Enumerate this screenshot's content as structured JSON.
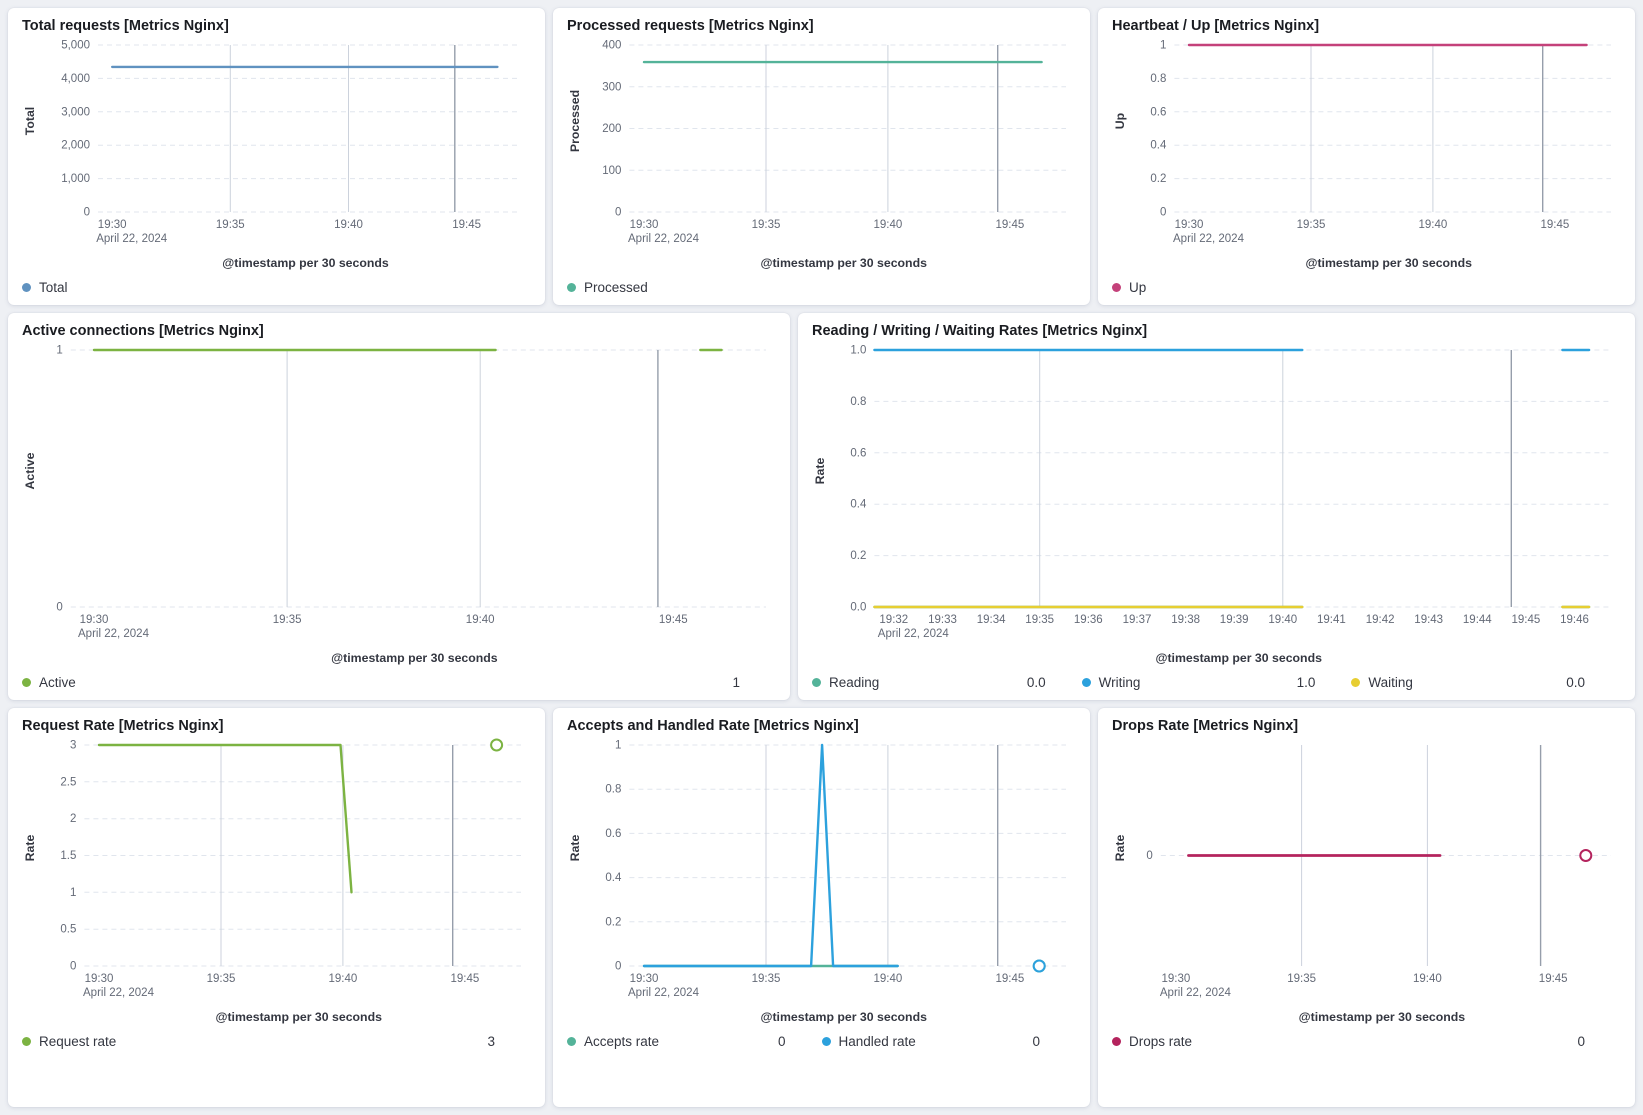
{
  "page": {
    "background": "#eef0f4",
    "panel_background": "#ffffff"
  },
  "chart_data": [
    {
      "type": "line",
      "title": "Total requests [Metrics Nginx]",
      "ylabel": "Total",
      "xlabel": "@timestamp per 30 seconds",
      "xlim": [
        29.4,
        47.3
      ],
      "ylim": [
        0,
        5000
      ],
      "y_ticks": [
        {
          "v": 0,
          "label": "0"
        },
        {
          "v": 1000,
          "label": "1,000"
        },
        {
          "v": 2000,
          "label": "2,000"
        },
        {
          "v": 3000,
          "label": "3,000"
        },
        {
          "v": 4000,
          "label": "4,000"
        },
        {
          "v": 5000,
          "label": "5,000"
        }
      ],
      "x_ticks": [
        {
          "v": 30,
          "label": "19:30",
          "sub": "April 22, 2024"
        },
        {
          "v": 35,
          "label": "19:35"
        },
        {
          "v": 40,
          "label": "19:40"
        },
        {
          "v": 45,
          "label": "19:45"
        }
      ],
      "grid_x": [
        35,
        40
      ],
      "annotation_x": 44.5,
      "series": [
        {
          "name": "Total",
          "color": "#6092C0",
          "points": [
            [
              30,
              4345
            ],
            [
              46.3,
              4345
            ]
          ]
        }
      ],
      "legend": [
        {
          "label": "Total",
          "color": "#6092C0"
        }
      ]
    },
    {
      "type": "line",
      "title": "Processed requests [Metrics Nginx]",
      "ylabel": "Processed",
      "xlabel": "@timestamp per 30 seconds",
      "xlim": [
        29.4,
        47.3
      ],
      "ylim": [
        0,
        400
      ],
      "y_ticks": [
        {
          "v": 0,
          "label": "0"
        },
        {
          "v": 100,
          "label": "100"
        },
        {
          "v": 200,
          "label": "200"
        },
        {
          "v": 300,
          "label": "300"
        },
        {
          "v": 400,
          "label": "400"
        }
      ],
      "x_ticks": [
        {
          "v": 30,
          "label": "19:30",
          "sub": "April 22, 2024"
        },
        {
          "v": 35,
          "label": "19:35"
        },
        {
          "v": 40,
          "label": "19:40"
        },
        {
          "v": 45,
          "label": "19:45"
        }
      ],
      "grid_x": [
        35,
        40
      ],
      "annotation_x": 44.5,
      "series": [
        {
          "name": "Processed",
          "color": "#54B399",
          "points": [
            [
              30,
              359
            ],
            [
              46.3,
              359
            ]
          ]
        }
      ],
      "legend": [
        {
          "label": "Processed",
          "color": "#54B399"
        }
      ]
    },
    {
      "type": "line",
      "title": "Heartbeat / Up [Metrics Nginx]",
      "ylabel": "Up",
      "xlabel": "@timestamp per 30 seconds",
      "xlim": [
        29.4,
        47.3
      ],
      "ylim": [
        0,
        1
      ],
      "y_ticks": [
        {
          "v": 0,
          "label": "0"
        },
        {
          "v": 0.2,
          "label": "0.2"
        },
        {
          "v": 0.4,
          "label": "0.4"
        },
        {
          "v": 0.6,
          "label": "0.6"
        },
        {
          "v": 0.8,
          "label": "0.8"
        },
        {
          "v": 1,
          "label": "1"
        }
      ],
      "x_ticks": [
        {
          "v": 30,
          "label": "19:30",
          "sub": "April 22, 2024"
        },
        {
          "v": 35,
          "label": "19:35"
        },
        {
          "v": 40,
          "label": "19:40"
        },
        {
          "v": 45,
          "label": "19:45"
        }
      ],
      "grid_x": [
        35,
        40
      ],
      "annotation_x": 44.5,
      "series": [
        {
          "name": "Up",
          "color": "#C4417A",
          "points": [
            [
              30,
              1
            ],
            [
              46.3,
              1
            ]
          ]
        }
      ],
      "legend": [
        {
          "label": "Up",
          "color": "#C4417A"
        }
      ]
    },
    {
      "type": "line",
      "title": "Active connections [Metrics Nginx]",
      "ylabel": "Active",
      "xlabel": "@timestamp per 30 seconds",
      "xlim": [
        29.4,
        47.4
      ],
      "ylim": [
        0,
        1
      ],
      "y_ticks": [
        {
          "v": 0,
          "label": "0"
        },
        {
          "v": 1,
          "label": "1"
        }
      ],
      "x_ticks": [
        {
          "v": 30,
          "label": "19:30",
          "sub": "April 22, 2024"
        },
        {
          "v": 35,
          "label": "19:35"
        },
        {
          "v": 40,
          "label": "19:40"
        },
        {
          "v": 45,
          "label": "19:45"
        }
      ],
      "grid_x": [
        35,
        40
      ],
      "annotation_x": 44.6,
      "series": [
        {
          "name": "Active",
          "color": "#7CB342",
          "points": [
            [
              30,
              1
            ],
            [
              40.4,
              1
            ],
            null,
            [
              45.7,
              1
            ],
            [
              46.25,
              1
            ]
          ]
        }
      ],
      "legend": [
        {
          "label": "Active",
          "color": "#7CB342",
          "value": "1"
        }
      ]
    },
    {
      "type": "line",
      "title": "Reading / Writing / Waiting Rates [Metrics Nginx]",
      "ylabel": "Rate",
      "xlabel": "@timestamp per 30 seconds",
      "xlim": [
        31.6,
        46.75
      ],
      "ylim": [
        0,
        1
      ],
      "y_ticks": [
        {
          "v": 0,
          "label": "0.0"
        },
        {
          "v": 0.2,
          "label": "0.2"
        },
        {
          "v": 0.4,
          "label": "0.4"
        },
        {
          "v": 0.6,
          "label": "0.6"
        },
        {
          "v": 0.8,
          "label": "0.8"
        },
        {
          "v": 1,
          "label": "1.0"
        }
      ],
      "x_ticks": [
        {
          "v": 32,
          "label": "19:32",
          "sub": "April 22, 2024"
        },
        {
          "v": 33,
          "label": "19:33"
        },
        {
          "v": 34,
          "label": "19:34"
        },
        {
          "v": 35,
          "label": "19:35"
        },
        {
          "v": 36,
          "label": "19:36"
        },
        {
          "v": 37,
          "label": "19:37"
        },
        {
          "v": 38,
          "label": "19:38"
        },
        {
          "v": 39,
          "label": "19:39"
        },
        {
          "v": 40,
          "label": "19:40"
        },
        {
          "v": 41,
          "label": "19:41"
        },
        {
          "v": 42,
          "label": "19:42"
        },
        {
          "v": 43,
          "label": "19:43"
        },
        {
          "v": 44,
          "label": "19:44"
        },
        {
          "v": 45,
          "label": "19:45"
        },
        {
          "v": 46,
          "label": "19:46"
        }
      ],
      "grid_x": [
        35,
        40
      ],
      "annotation_x": 44.7,
      "series": [
        {
          "name": "Reading",
          "color": "#54B399",
          "points": [
            [
              31.6,
              0
            ],
            [
              40.4,
              0
            ],
            null,
            [
              45.75,
              0
            ],
            [
              46.3,
              0
            ]
          ]
        },
        {
          "name": "Writing",
          "color": "#2CA1DD",
          "points": [
            [
              31.6,
              1
            ],
            [
              40.4,
              1
            ],
            null,
            [
              45.75,
              1
            ],
            [
              46.3,
              1
            ]
          ]
        },
        {
          "name": "Waiting",
          "color": "#E7CE32",
          "points": [
            [
              31.6,
              0
            ],
            [
              40.4,
              0
            ],
            null,
            [
              45.75,
              0
            ],
            [
              46.3,
              0
            ]
          ]
        }
      ],
      "legend": [
        {
          "label": "Reading",
          "color": "#54B399",
          "value": "0.0"
        },
        {
          "label": "Writing",
          "color": "#2CA1DD",
          "value": "1.0"
        },
        {
          "label": "Waiting",
          "color": "#E7CE32",
          "value": "0.0"
        }
      ]
    },
    {
      "type": "line",
      "title": "Request Rate [Metrics Nginx]",
      "ylabel": "Rate",
      "xlabel": "@timestamp per 30 seconds",
      "xlim": [
        29.4,
        47.3
      ],
      "ylim": [
        0,
        3
      ],
      "y_ticks": [
        {
          "v": 0,
          "label": "0"
        },
        {
          "v": 0.5,
          "label": "0.5"
        },
        {
          "v": 1,
          "label": "1"
        },
        {
          "v": 1.5,
          "label": "1.5"
        },
        {
          "v": 2,
          "label": "2"
        },
        {
          "v": 2.5,
          "label": "2.5"
        },
        {
          "v": 3,
          "label": "3"
        }
      ],
      "x_ticks": [
        {
          "v": 30,
          "label": "19:30",
          "sub": "April 22, 2024"
        },
        {
          "v": 35,
          "label": "19:35"
        },
        {
          "v": 40,
          "label": "19:40"
        },
        {
          "v": 45,
          "label": "19:45"
        }
      ],
      "grid_x": [
        35,
        40
      ],
      "annotation_x": 44.5,
      "series": [
        {
          "name": "Request rate",
          "color": "#7CB342",
          "points": [
            [
              30,
              3
            ],
            [
              39.9,
              3
            ],
            [
              40.35,
              1
            ],
            null,
            [
              46.3,
              3
            ]
          ]
        }
      ],
      "legend": [
        {
          "label": "Request rate",
          "color": "#7CB342",
          "value": "3"
        }
      ]
    },
    {
      "type": "line",
      "title": "Accepts and Handled Rate [Metrics Nginx]",
      "ylabel": "Rate",
      "xlabel": "@timestamp per 30 seconds",
      "xlim": [
        29.4,
        47.3
      ],
      "ylim": [
        0,
        1
      ],
      "y_ticks": [
        {
          "v": 0,
          "label": "0"
        },
        {
          "v": 0.2,
          "label": "0.2"
        },
        {
          "v": 0.4,
          "label": "0.4"
        },
        {
          "v": 0.6,
          "label": "0.6"
        },
        {
          "v": 0.8,
          "label": "0.8"
        },
        {
          "v": 1,
          "label": "1"
        }
      ],
      "x_ticks": [
        {
          "v": 30,
          "label": "19:30",
          "sub": "April 22, 2024"
        },
        {
          "v": 35,
          "label": "19:35"
        },
        {
          "v": 40,
          "label": "19:40"
        },
        {
          "v": 45,
          "label": "19:45"
        }
      ],
      "grid_x": [
        35,
        40
      ],
      "annotation_x": 44.5,
      "series": [
        {
          "name": "Accepts rate",
          "color": "#54B399",
          "points": [
            [
              30,
              0
            ],
            [
              40.4,
              0
            ],
            null,
            [
              46.2,
              0
            ]
          ]
        },
        {
          "name": "Handled rate",
          "color": "#2CA1DD",
          "points": [
            [
              30,
              0
            ],
            [
              36.85,
              0
            ],
            [
              37.3,
              1
            ],
            [
              37.75,
              0
            ],
            [
              40.4,
              0
            ],
            null,
            [
              46.2,
              0
            ]
          ]
        }
      ],
      "legend": [
        {
          "label": "Accepts rate",
          "color": "#54B399",
          "value": "0"
        },
        {
          "label": "Handled rate",
          "color": "#2CA1DD",
          "value": "0"
        }
      ]
    },
    {
      "type": "line",
      "title": "Drops Rate [Metrics Nginx]",
      "ylabel": "Rate",
      "xlabel": "@timestamp per 30 seconds",
      "xlim": [
        29.4,
        47.3
      ],
      "ylim": [
        -1,
        1
      ],
      "y_ticks": [
        {
          "v": 0,
          "label": "0"
        }
      ],
      "x_ticks": [
        {
          "v": 30,
          "label": "19:30",
          "sub": "April 22, 2024"
        },
        {
          "v": 35,
          "label": "19:35"
        },
        {
          "v": 40,
          "label": "19:40"
        },
        {
          "v": 45,
          "label": "19:45"
        }
      ],
      "grid_x": [
        35,
        40
      ],
      "annotation_x": 44.5,
      "series": [
        {
          "name": "Drops rate",
          "color": "#B4235D",
          "width": 2.8,
          "points": [
            [
              30.5,
              0
            ],
            [
              40.5,
              0
            ],
            null,
            [
              46.3,
              0
            ]
          ]
        }
      ],
      "legend": [
        {
          "label": "Drops rate",
          "color": "#B4235D",
          "value": "0"
        }
      ]
    }
  ]
}
